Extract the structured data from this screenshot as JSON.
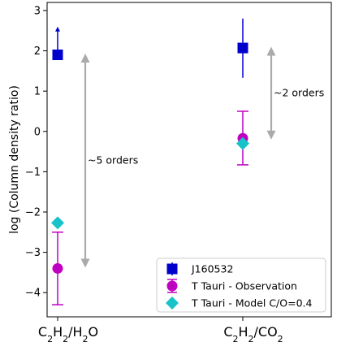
{
  "chart_data": {
    "type": "scatter",
    "categories": [
      "C2H2/H2O",
      "C2H2/CO2"
    ],
    "ylabel": "log (Column density ratio)",
    "ylim": [
      -4.6,
      3.2
    ],
    "yticks": [
      3,
      2,
      1,
      0,
      -1,
      -2,
      -3,
      -4
    ],
    "ytick_labels": [
      "3",
      "2",
      "1",
      "0",
      "−1",
      "−2",
      "−3",
      "−4"
    ],
    "grid": false,
    "legend_position": "lower right",
    "series": [
      {
        "name": "J160532",
        "marker": "square",
        "color": "#0000cd",
        "points": [
          {
            "category": "C2H2/H2O",
            "y": 1.9,
            "lower_limit": true,
            "arrow_to": 2.6
          },
          {
            "category": "C2H2/CO2",
            "y": 2.07,
            "err_low": 1.33,
            "err_high": 2.8
          }
        ]
      },
      {
        "name": "T Tauri - Observation",
        "marker": "circle",
        "color": "#c000c0",
        "points": [
          {
            "category": "C2H2/H2O",
            "y": -3.4,
            "err_low": -4.3,
            "err_high": -2.5
          },
          {
            "category": "C2H2/CO2",
            "y": -0.17,
            "err_low": -0.83,
            "err_high": 0.5
          }
        ]
      },
      {
        "name": "T Tauri - Model C/O=0.4",
        "marker": "diamond",
        "color": "#17c2c8",
        "points": [
          {
            "category": "C2H2/H2O",
            "y": -2.27
          },
          {
            "category": "C2H2/CO2",
            "y": -0.3
          }
        ]
      }
    ],
    "annotations": [
      {
        "category": "C2H2/H2O",
        "text": "~5 orders",
        "from": -3.35,
        "to": 1.9
      },
      {
        "category": "C2H2/CO2",
        "text": "~2 orders",
        "from": -0.17,
        "to": 2.07
      }
    ],
    "colors": {
      "arrow": "#aaaaaa"
    }
  }
}
